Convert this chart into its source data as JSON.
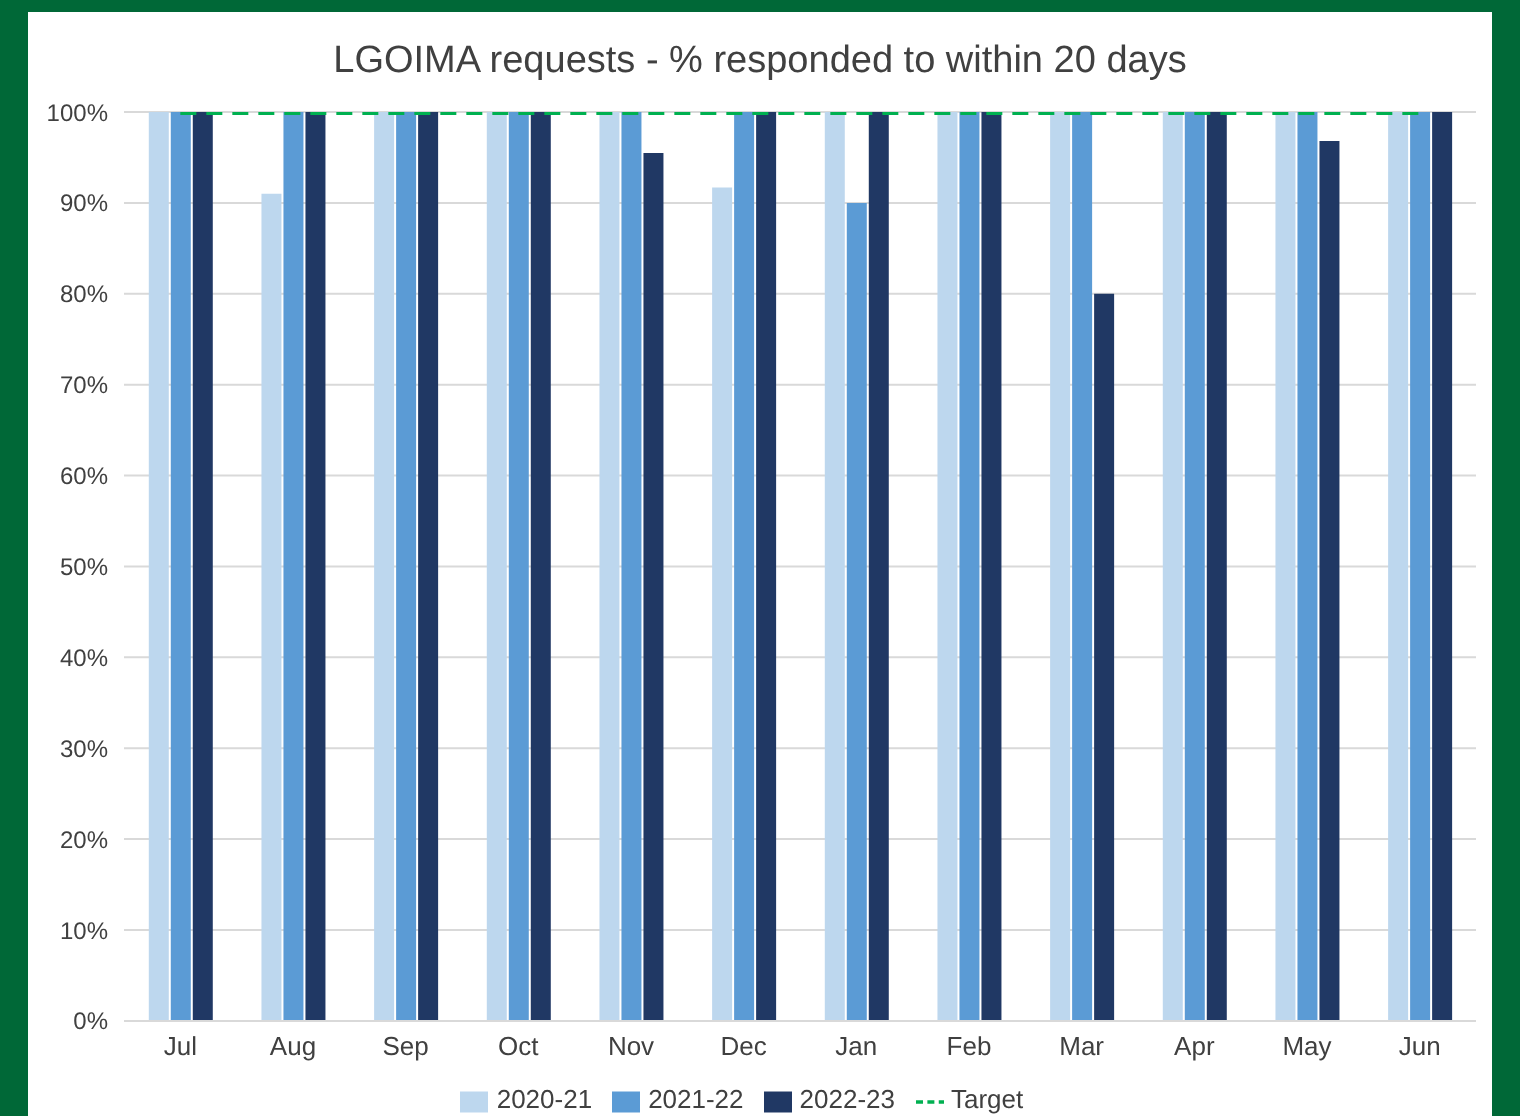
{
  "chart_data": {
    "type": "bar",
    "title": "LGOIMA requests - % responded to within 20 days",
    "categories": [
      "Jul",
      "Aug",
      "Sep",
      "Oct",
      "Nov",
      "Dec",
      "Jan",
      "Feb",
      "Mar",
      "Apr",
      "May",
      "Jun"
    ],
    "series": [
      {
        "name": "2020-21",
        "color": "#bdd7ee",
        "values": [
          100,
          91,
          100,
          100,
          100,
          91.7,
          100,
          100,
          100,
          100,
          100,
          100
        ]
      },
      {
        "name": "2021-22",
        "color": "#5b9bd5",
        "values": [
          100,
          100,
          100,
          100,
          100,
          100,
          90,
          100,
          100,
          100,
          100,
          100
        ]
      },
      {
        "name": "2022-23",
        "color": "#203864",
        "values": [
          100,
          100,
          100,
          100,
          95.5,
          100,
          100,
          100,
          80,
          100,
          96.8,
          100
        ]
      },
      {
        "name": "Target",
        "type": "line",
        "color": "#00b050",
        "line_style": "dashed",
        "values": [
          100,
          100,
          100,
          100,
          100,
          100,
          100,
          100,
          100,
          100,
          100,
          100
        ]
      }
    ],
    "ylim": [
      0,
      100
    ],
    "yticks": [
      {
        "value": 0,
        "label": "0%"
      },
      {
        "value": 10,
        "label": "10%"
      },
      {
        "value": 20,
        "label": "20%"
      },
      {
        "value": 30,
        "label": "30%"
      },
      {
        "value": 40,
        "label": "40%"
      },
      {
        "value": 50,
        "label": "50%"
      },
      {
        "value": 60,
        "label": "60%"
      },
      {
        "value": 70,
        "label": "70%"
      },
      {
        "value": 80,
        "label": "80%"
      },
      {
        "value": 90,
        "label": "90%"
      },
      {
        "value": 100,
        "label": "100%"
      }
    ],
    "grid": "y",
    "legend": "bottom"
  }
}
